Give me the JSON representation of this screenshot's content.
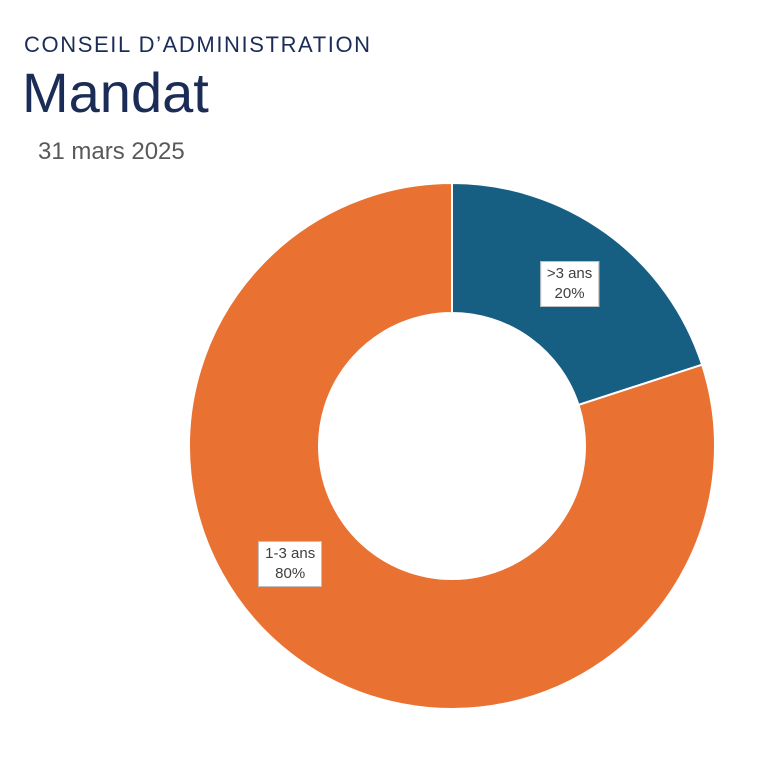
{
  "header": {
    "subtitle": "CONSEIL D’ADMINISTRATION",
    "title": "Mandat",
    "date": "31 mars 2025"
  },
  "chart_data": {
    "type": "pie",
    "donut": true,
    "title": "Mandat",
    "categories": [
      ">3 ans",
      "1-3 ans"
    ],
    "values": [
      20,
      80
    ],
    "value_labels": [
      "20%",
      "80%"
    ],
    "colors": [
      "#165f82",
      "#e97132"
    ],
    "legend": "none"
  }
}
